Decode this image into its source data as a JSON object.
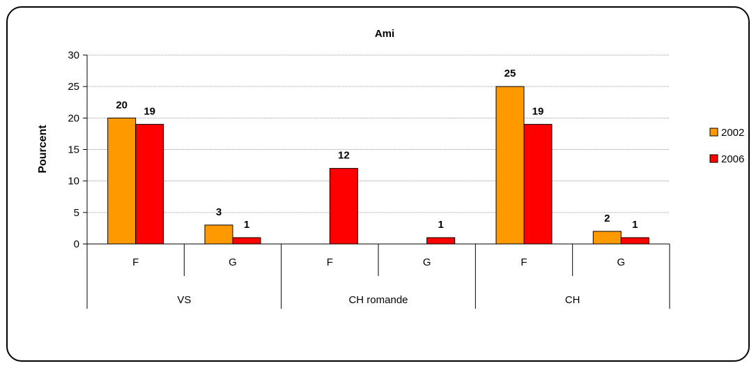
{
  "chart_data": {
    "type": "bar",
    "title": "Ami",
    "ylabel": "Pourcent",
    "xlabel": "",
    "ylim": [
      0,
      30
    ],
    "yticks": [
      0,
      5,
      10,
      15,
      20,
      25,
      30
    ],
    "grid": true,
    "legend_position": "right",
    "groups": [
      {
        "label": "VS",
        "subcategories": [
          "F",
          "G"
        ]
      },
      {
        "label": "CH romande",
        "subcategories": [
          "F",
          "G"
        ]
      },
      {
        "label": "CH",
        "subcategories": [
          "F",
          "G"
        ]
      }
    ],
    "categories": [
      "F",
      "G",
      "F",
      "G",
      "F",
      "G"
    ],
    "series": [
      {
        "name": "2002",
        "color": "#FF9900",
        "values": [
          20,
          3,
          null,
          null,
          25,
          2
        ]
      },
      {
        "name": "2006",
        "color": "#FF0000",
        "values": [
          19,
          1,
          12,
          1,
          19,
          1
        ]
      }
    ]
  }
}
